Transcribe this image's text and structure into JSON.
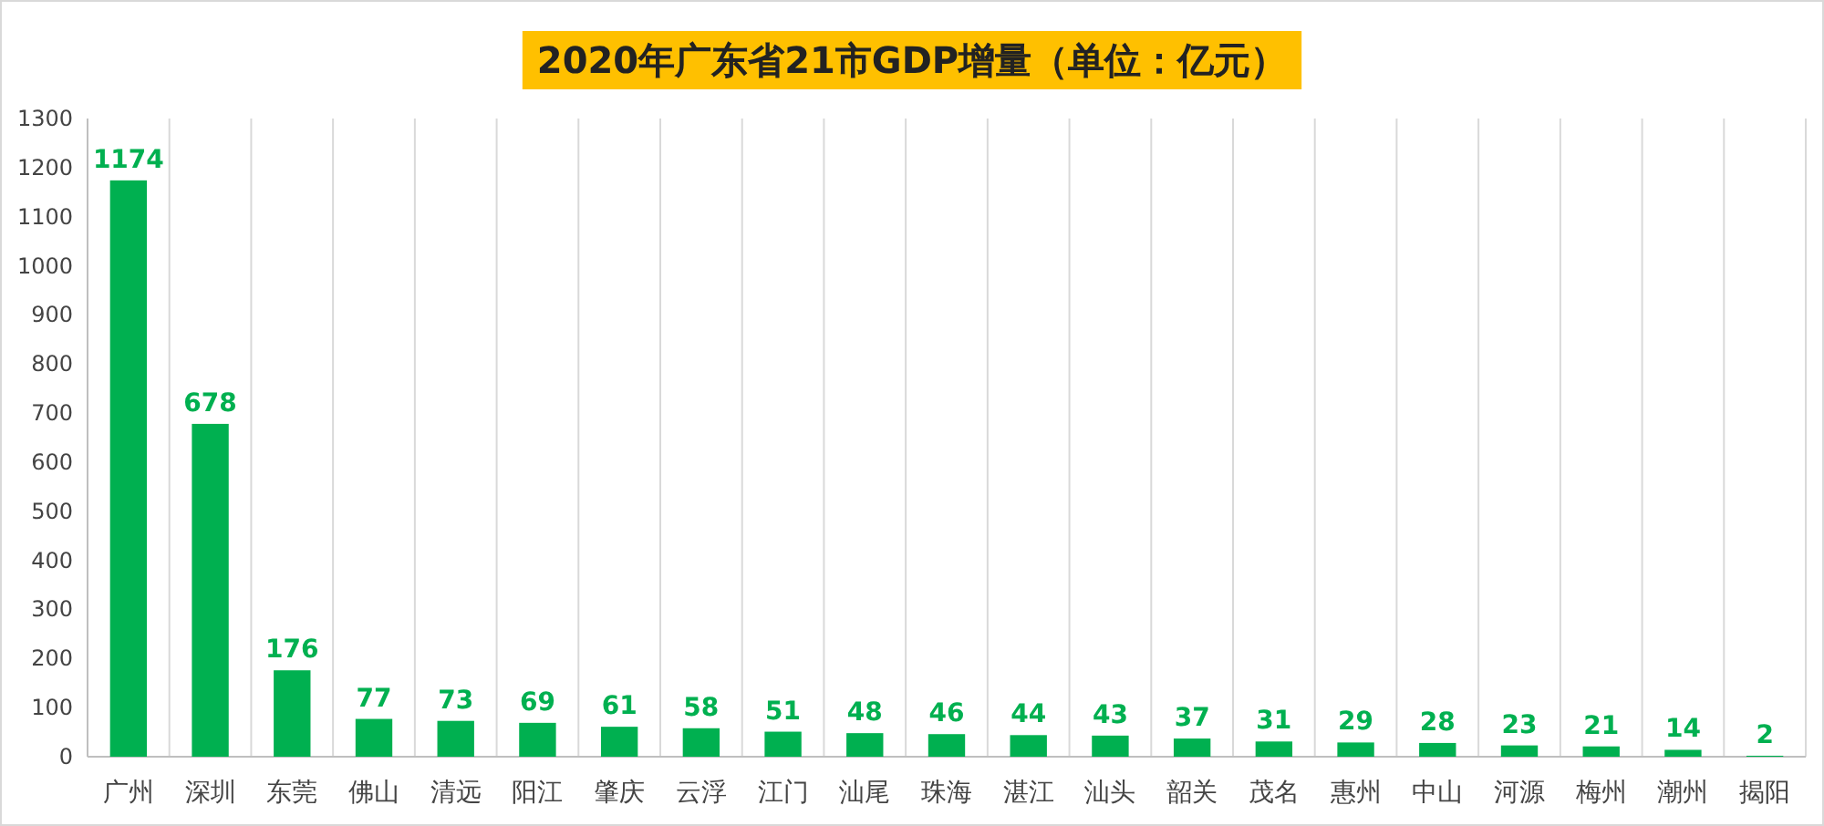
{
  "chart_data": {
    "type": "bar",
    "title": "2020年广东省21市GDP增量（单位：亿元）",
    "categories": [
      "广州",
      "深圳",
      "东莞",
      "佛山",
      "清远",
      "阳江",
      "肇庆",
      "云浮",
      "江门",
      "汕尾",
      "珠海",
      "湛江",
      "汕头",
      "韶关",
      "茂名",
      "惠州",
      "中山",
      "河源",
      "梅州",
      "潮州",
      "揭阳"
    ],
    "values": [
      1174,
      678,
      176,
      77,
      73,
      69,
      61,
      58,
      51,
      48,
      46,
      44,
      43,
      37,
      31,
      29,
      28,
      23,
      21,
      14,
      2
    ],
    "color": "#00b050",
    "ylim": [
      0,
      1300
    ],
    "yticks": [
      0,
      100,
      200,
      300,
      400,
      500,
      600,
      700,
      800,
      900,
      1000,
      1100,
      1200,
      1300
    ],
    "grid": "x",
    "data_labels": true
  }
}
